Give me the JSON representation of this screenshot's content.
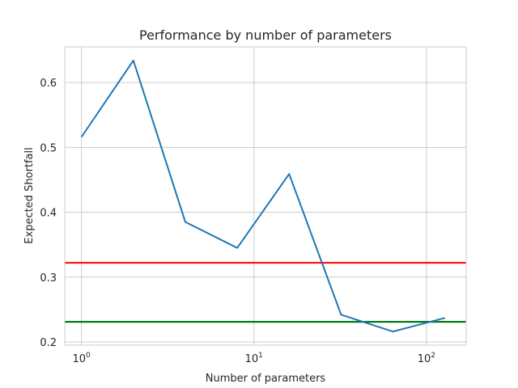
{
  "chart_data": {
    "type": "line",
    "title": "Performance by number of parameters",
    "xlabel": "Number of parameters",
    "ylabel": "Expected Shortfall",
    "xscale": "log",
    "xlim": [
      0.8,
      170
    ],
    "ylim": [
      0.195,
      0.655
    ],
    "grid": true,
    "legend": "none",
    "x_ticks": [
      {
        "value": 1,
        "base": "10",
        "exp": "0"
      },
      {
        "value": 10,
        "base": "10",
        "exp": "1"
      },
      {
        "value": 100,
        "base": "10",
        "exp": "2"
      }
    ],
    "y_ticks": [
      0.2,
      0.3,
      0.4,
      0.5,
      0.6
    ],
    "y_tick_labels": [
      "0.2",
      "0.3",
      "0.4",
      "0.5",
      "0.6"
    ],
    "series": [
      {
        "color": "#1f77b4",
        "x": [
          1,
          2,
          4,
          8,
          16,
          32,
          64,
          128
        ],
        "y": [
          0.516,
          0.634,
          0.385,
          0.345,
          0.459,
          0.242,
          0.216,
          0.237
        ]
      }
    ],
    "hlines": [
      {
        "y": 0.322,
        "color": "#ff0000"
      },
      {
        "y": 0.231,
        "color": "#0000ff"
      },
      {
        "y": 0.231,
        "color": "#008000"
      }
    ]
  }
}
